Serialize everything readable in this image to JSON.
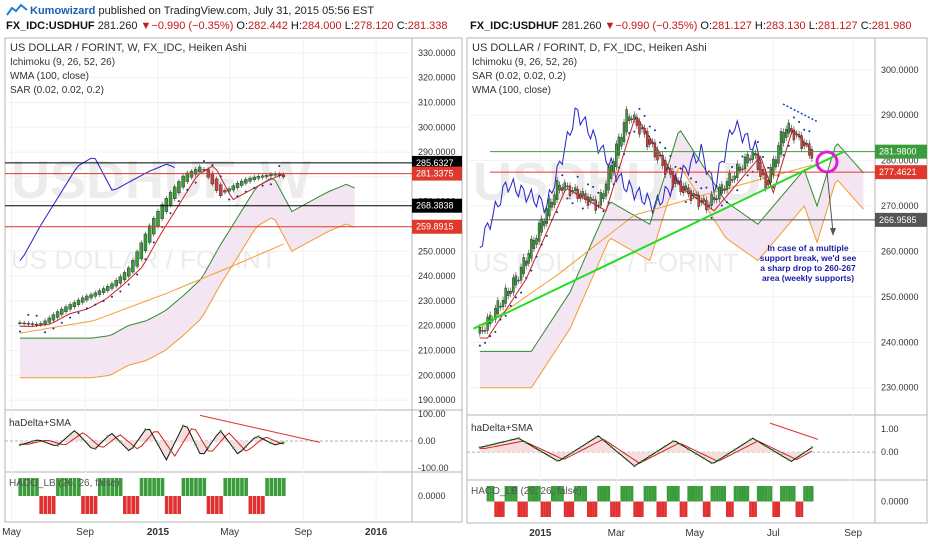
{
  "header": {
    "author": "Kumowizard",
    "published_text": " published on TradingView.com, July 31, 2015 05:56 EST"
  },
  "left_panel": {
    "summary": {
      "symbol": "FX_IDC:USDHUF",
      "last": "281.260",
      "change": "−0.990 (−0.35%)",
      "o": "282.442",
      "h": "284.000",
      "l": "278.120",
      "c": "281.338"
    },
    "legend": [
      "US DOLLAR / FORINT, W, FX_IDC, Heiken Ashi",
      "Ichimoku (9, 26, 52, 26)",
      "WMA (100, close)",
      "SAR (0.02, 0.02, 0.2)"
    ],
    "watermark": [
      "USDHUF, W",
      "US DOLLAR / FORINT"
    ],
    "price_axis": [
      "330.0000",
      "320.0000",
      "310.0000",
      "300.0000",
      "290.0000",
      "280.0000",
      "270.0000",
      "260.0000",
      "250.0000",
      "240.0000",
      "230.0000",
      "220.0000",
      "210.0000",
      "200.0000",
      "190.0000"
    ],
    "price_tags": [
      {
        "value": 285.6327,
        "text": "285.6327",
        "color": "#000000"
      },
      {
        "value": 281.3375,
        "text": "281.3375",
        "color": "#e0392b"
      },
      {
        "value": 268.3838,
        "text": "268.3838",
        "color": "#000000"
      },
      {
        "value": 259.8915,
        "text": "259.8915",
        "color": "#e0392b"
      }
    ],
    "osc_label": "haDelta+SMA",
    "osc_axis": [
      "100.00",
      "0.00",
      "-100.00"
    ],
    "haco_label": "HACO_LB (26, 26, false)",
    "haco_axis": [
      "0.0000"
    ],
    "time_axis": [
      "May",
      "Sep",
      "2015",
      "May",
      "Sep",
      "2016"
    ]
  },
  "right_panel": {
    "summary": {
      "symbol": "FX_IDC:USDHUF",
      "last": "281.260",
      "change": "−0.990 (−0.35%)",
      "o": "281.127",
      "h": "283.130",
      "l": "281.127",
      "c": "281.980"
    },
    "legend": [
      "US DOLLAR / FORINT, D, FX_IDC, Heiken Ashi",
      "Ichimoku (9, 26, 52, 26)",
      "SAR (0.02, 0.02, 0.2)",
      "WMA (100, close)"
    ],
    "watermark": [
      "USDHUF, D",
      "US DOLLAR / FORINT"
    ],
    "price_axis": [
      "300.0000",
      "290.0000",
      "280.0000",
      "270.0000",
      "260.0000",
      "250.0000",
      "240.0000",
      "230.0000"
    ],
    "price_tags": [
      {
        "value": 281.98,
        "text": "281.9800",
        "color": "#3a9c3a"
      },
      {
        "value": 277.4621,
        "text": "277.4621",
        "color": "#e0392b"
      },
      {
        "value": 266.9585,
        "text": "266.9585",
        "color": "#555555"
      }
    ],
    "annotation": [
      "In case of a multiple",
      "support break, we'd see",
      "a sharp drop to 260-267",
      "area (weekly supports)"
    ],
    "osc_label": "haDelta+SMA",
    "osc_axis": [
      "1.00",
      "0.00"
    ],
    "haco_label": "HACO_LB (26, 26, false)",
    "haco_axis": [
      "0.0000"
    ],
    "time_axis": [
      "2015",
      "Mar",
      "May",
      "Jul",
      "Sep"
    ]
  },
  "chart_data": [
    {
      "type": "candlestick",
      "title": "US DOLLAR / FORINT, W, FX_IDC, Heiken Ashi",
      "timeframe": "weekly",
      "ylim": [
        186,
        336
      ],
      "horizontal_levels": [
        285.6327,
        268.3838,
        259.8915
      ],
      "price_path": [
        [
          "2014-05",
          221
        ],
        [
          "2014-06",
          222
        ],
        [
          "2014-07",
          226
        ],
        [
          "2014-08",
          228
        ],
        [
          "2014-09",
          232
        ],
        [
          "2014-10",
          238
        ],
        [
          "2014-11",
          245
        ],
        [
          "2014-12",
          258
        ],
        [
          "2015-01",
          270
        ],
        [
          "2015-02",
          282
        ],
        [
          "2015-03",
          286
        ],
        [
          "2015-04",
          272
        ],
        [
          "2015-05",
          276
        ],
        [
          "2015-06",
          280
        ],
        [
          "2015-07",
          283
        ],
        [
          "2015-07-31",
          281.3
        ]
      ],
      "wma_path": [
        [
          "2014-05",
          217
        ],
        [
          "2014-09",
          222
        ],
        [
          "2015-01",
          233
        ],
        [
          "2015-05",
          245
        ],
        [
          "2015-07-31",
          253
        ]
      ],
      "oscillator_path": [
        [
          "2014-05",
          -15
        ],
        [
          "2014-06",
          5
        ],
        [
          "2014-07",
          -20
        ],
        [
          "2014-08",
          40
        ],
        [
          "2014-09",
          -35
        ],
        [
          "2014-10",
          30
        ],
        [
          "2014-11",
          -40
        ],
        [
          "2014-12",
          55
        ],
        [
          "2015-01",
          -70
        ],
        [
          "2015-02",
          70
        ],
        [
          "2015-03",
          -60
        ],
        [
          "2015-04",
          40
        ],
        [
          "2015-05",
          -50
        ],
        [
          "2015-06",
          20
        ],
        [
          "2015-07",
          -15
        ],
        [
          "2015-07-31",
          -5
        ]
      ],
      "xlabel": "",
      "ylabel": ""
    },
    {
      "type": "candlestick",
      "title": "US DOLLAR / FORINT, D, FX_IDC, Heiken Ashi",
      "timeframe": "daily",
      "ylim": [
        224,
        307
      ],
      "horizontal_levels": [
        281.98,
        277.4621,
        266.9585
      ],
      "trendline": [
        [
          "2014-11-10",
          243
        ],
        [
          "2015-08-25",
          282
        ]
      ],
      "price_path": [
        [
          "2014-11",
          242
        ],
        [
          "2014-12",
          255
        ],
        [
          "2015-01",
          275
        ],
        [
          "2015-02",
          270
        ],
        [
          "2015-03-10",
          291
        ],
        [
          "2015-04",
          275
        ],
        [
          "2015-05-10",
          270
        ],
        [
          "2015-06",
          282
        ],
        [
          "2015-06-25",
          274
        ],
        [
          "2015-07-10",
          288
        ],
        [
          "2015-07-31",
          281.3
        ]
      ],
      "wma_path": [
        [
          "2014-11",
          243
        ],
        [
          "2015-01",
          255
        ],
        [
          "2015-03",
          268
        ],
        [
          "2015-05",
          273
        ],
        [
          "2015-07-31",
          279
        ]
      ],
      "oscillator_path": [
        [
          "2014-11",
          0.2
        ],
        [
          "2014-12",
          0.6
        ],
        [
          "2015-01",
          -0.4
        ],
        [
          "2015-02",
          0.7
        ],
        [
          "2015-03",
          -0.6
        ],
        [
          "2015-04",
          0.5
        ],
        [
          "2015-05",
          -0.5
        ],
        [
          "2015-06",
          0.6
        ],
        [
          "2015-07",
          -0.4
        ],
        [
          "2015-07-31",
          0.2
        ]
      ],
      "xlabel": "",
      "ylabel": ""
    }
  ]
}
